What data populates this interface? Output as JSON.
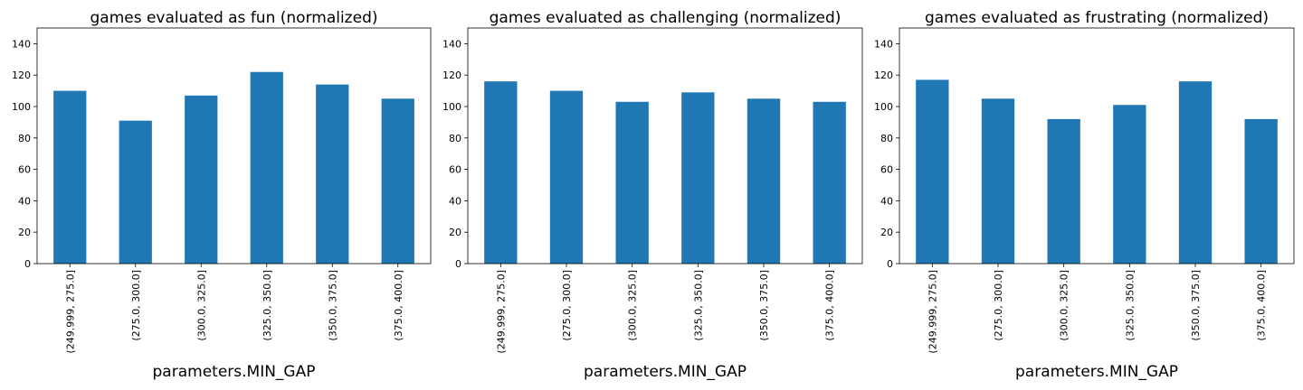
{
  "chart_data": [
    {
      "type": "bar",
      "title": "games evaluated as fun (normalized)",
      "xlabel": "parameters.MIN_GAP",
      "ylabel": "",
      "ylim": [
        0,
        150
      ],
      "yticks": [
        "0",
        "20",
        "40",
        "60",
        "80",
        "100",
        "120",
        "140"
      ],
      "categories": [
        "(249.999, 275.0]",
        "(275.0, 300.0]",
        "(300.0, 325.0]",
        "(325.0, 350.0]",
        "(350.0, 375.0]",
        "(375.0, 400.0]"
      ],
      "values": [
        110,
        91,
        107,
        122,
        114,
        105
      ],
      "legend": "none",
      "grid": false,
      "bar_color": "#1f77b4"
    },
    {
      "type": "bar",
      "title": "games evaluated as challenging (normalized)",
      "xlabel": "parameters.MIN_GAP",
      "ylabel": "",
      "ylim": [
        0,
        150
      ],
      "yticks": [
        "0",
        "20",
        "40",
        "60",
        "80",
        "100",
        "120",
        "140"
      ],
      "categories": [
        "(249.999, 275.0]",
        "(275.0, 300.0]",
        "(300.0, 325.0]",
        "(325.0, 350.0]",
        "(350.0, 375.0]",
        "(375.0, 400.0]"
      ],
      "values": [
        116,
        110,
        103,
        109,
        105,
        103
      ],
      "legend": "none",
      "grid": false,
      "bar_color": "#1f77b4"
    },
    {
      "type": "bar",
      "title": "games evaluated as frustrating (normalized)",
      "xlabel": "parameters.MIN_GAP",
      "ylabel": "",
      "ylim": [
        0,
        150
      ],
      "yticks": [
        "0",
        "20",
        "40",
        "60",
        "80",
        "100",
        "120",
        "140"
      ],
      "categories": [
        "(249.999, 275.0]",
        "(275.0, 300.0]",
        "(300.0, 325.0]",
        "(325.0, 350.0]",
        "(350.0, 375.0]",
        "(375.0, 400.0]"
      ],
      "values": [
        117,
        105,
        92,
        101,
        116,
        92
      ],
      "legend": "none",
      "grid": false,
      "bar_color": "#1f77b4"
    }
  ]
}
